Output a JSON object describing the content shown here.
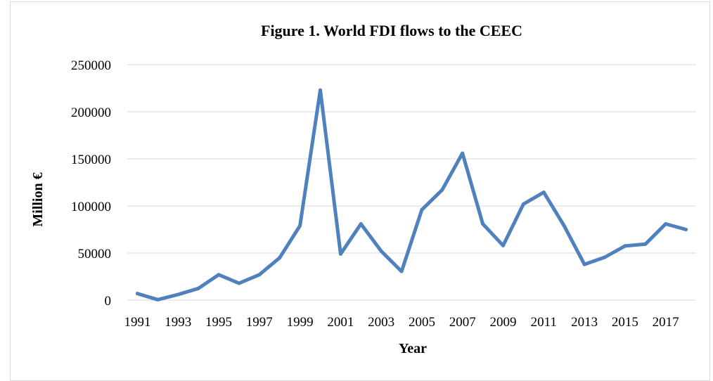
{
  "chart_data": {
    "type": "line",
    "title": "Figure 1. World FDI flows to the CEEC",
    "xlabel": "Year",
    "ylabel": "Million €",
    "ylim": [
      0,
      250000
    ],
    "yticks": [
      0,
      50000,
      100000,
      150000,
      200000,
      250000
    ],
    "xtick_labels": [
      "1991",
      "1993",
      "1995",
      "1997",
      "1999",
      "2001",
      "2003",
      "2005",
      "2007",
      "2009",
      "2011",
      "2013",
      "2015",
      "2017"
    ],
    "grid": true,
    "legend": "none",
    "line_color": "#4F81BD",
    "x": [
      1991,
      1992,
      1993,
      1994,
      1995,
      1996,
      1997,
      1998,
      1999,
      2000,
      2001,
      2002,
      2003,
      2004,
      2005,
      2006,
      2007,
      2008,
      2009,
      2010,
      2011,
      2012,
      2013,
      2014,
      2015,
      2016,
      2017,
      2018
    ],
    "series": [
      {
        "values": [
          7000,
          500,
          6000,
          12500,
          27000,
          18000,
          27000,
          45000,
          79000,
          223000,
          49000,
          81000,
          52000,
          30500,
          96000,
          117000,
          156000,
          81000,
          58000,
          102000,
          114500,
          79000,
          38000,
          45500,
          57500,
          59500,
          81000,
          75000
        ]
      }
    ]
  }
}
